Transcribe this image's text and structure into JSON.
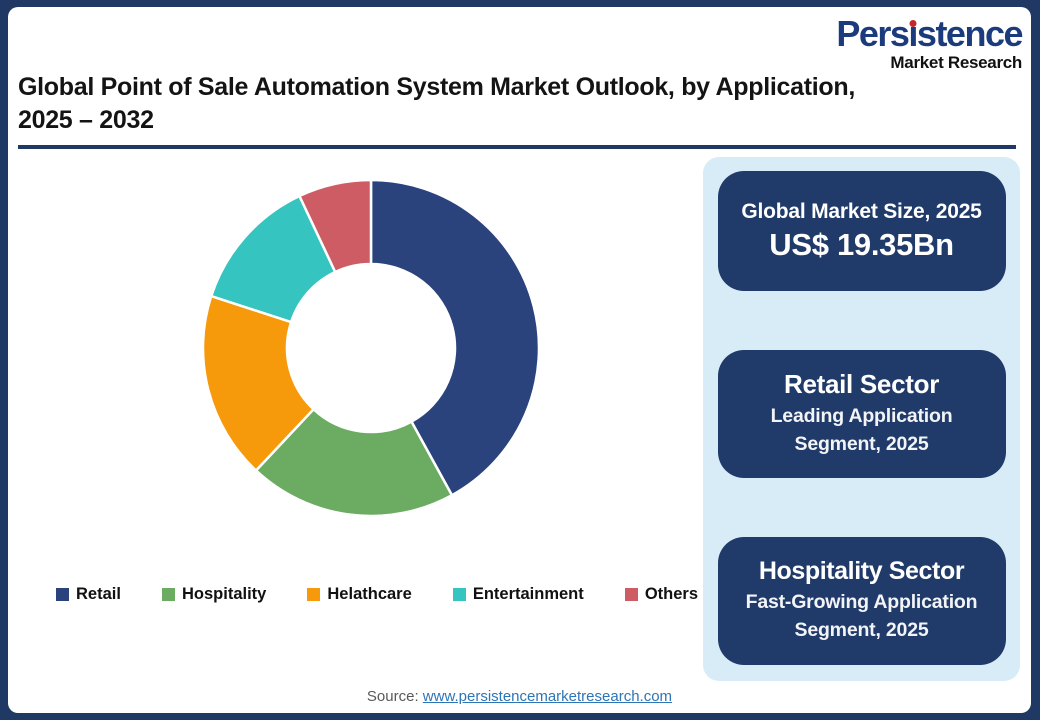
{
  "logo": {
    "name": "Persistence",
    "tagline": "Market Research"
  },
  "header": {
    "title_line1": "Global Point of Sale Automation System Market Outlook, by Application,",
    "title_line2": "2025 – 2032"
  },
  "chart_data": {
    "type": "pie",
    "subtype": "donut",
    "title": "Global Point of Sale Automation System Market Outlook, by Application, 2025 – 2032",
    "categories": [
      "Retail",
      "Hospitality",
      "Helathcare",
      "Entertainment",
      "Others"
    ],
    "values": [
      42,
      20,
      18,
      13,
      7
    ],
    "unit": "percent-share (estimated from arc angles, no data labels shown)",
    "colors": [
      "#2A437C",
      "#6CAB62",
      "#F6990A",
      "#35C4BF",
      "#CD5C64"
    ],
    "legend_position": "bottom",
    "start_angle_deg": 0,
    "inner_radius_ratio": 0.5
  },
  "panel": {
    "cards": [
      {
        "heading": "Global Market Size, 2025",
        "value": "US$ 19.35Bn"
      },
      {
        "heading": "Retail Sector",
        "subtext": "Leading Application Segment, 2025"
      },
      {
        "heading": "Hospitality Sector",
        "subtext": "Fast-Growing Application Segment, 2025"
      }
    ]
  },
  "footer": {
    "source_label": "Source:",
    "source_link": "www.persistencemarketresearch.com"
  },
  "colors": {
    "frame_navy": "#1F3864",
    "logo_blue": "#1B3B7C",
    "logo_dot_red": "#C3272E",
    "panel_bg": "#D8ECF8",
    "card_bg": "#203A69",
    "link_blue": "#2E75B6",
    "source_gray": "#595959"
  }
}
